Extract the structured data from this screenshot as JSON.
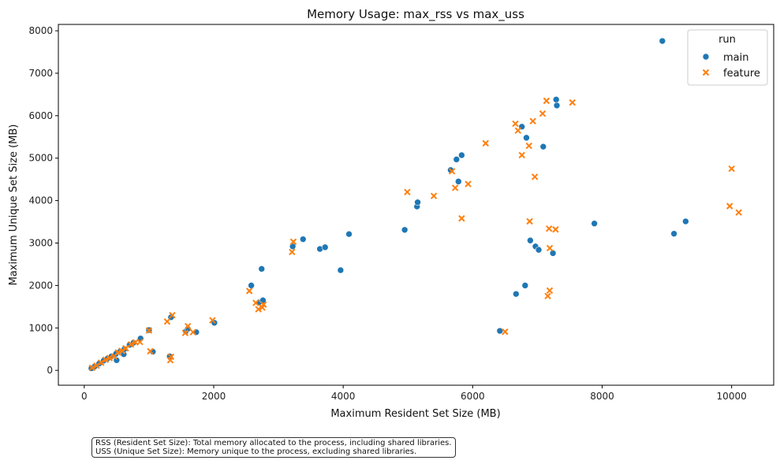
{
  "chart_data": {
    "type": "scatter",
    "title": "Memory Usage: max_rss vs max_uss",
    "xlabel": "Maximum Resident Set Size (MB)",
    "ylabel": "Maximum Unique Set Size (MB)",
    "xlim": [
      -400,
      10650
    ],
    "ylim": [
      -350,
      8150
    ],
    "xticks": [
      0,
      2000,
      4000,
      6000,
      8000,
      10000
    ],
    "yticks": [
      0,
      1000,
      2000,
      3000,
      4000,
      5000,
      6000,
      7000,
      8000
    ],
    "grid": false,
    "legend": {
      "title": "run",
      "placement": "top-right"
    },
    "series": [
      {
        "name": "main",
        "marker": "circle",
        "color": "#1f77b4",
        "points": [
          [
            110,
            50
          ],
          [
            160,
            90
          ],
          [
            230,
            160
          ],
          [
            300,
            230
          ],
          [
            360,
            280
          ],
          [
            420,
            330
          ],
          [
            490,
            390
          ],
          [
            500,
            240
          ],
          [
            550,
            440
          ],
          [
            610,
            380
          ],
          [
            620,
            500
          ],
          [
            700,
            600
          ],
          [
            760,
            650
          ],
          [
            870,
            750
          ],
          [
            1000,
            950
          ],
          [
            1060,
            440
          ],
          [
            1320,
            330
          ],
          [
            1340,
            1250
          ],
          [
            1570,
            920
          ],
          [
            1600,
            980
          ],
          [
            1730,
            900
          ],
          [
            2010,
            1120
          ],
          [
            2580,
            2000
          ],
          [
            2700,
            1600
          ],
          [
            2740,
            2390
          ],
          [
            2760,
            1650
          ],
          [
            3220,
            2920
          ],
          [
            3380,
            3090
          ],
          [
            3640,
            2860
          ],
          [
            3720,
            2900
          ],
          [
            3960,
            2360
          ],
          [
            4090,
            3210
          ],
          [
            4950,
            3310
          ],
          [
            5140,
            3860
          ],
          [
            5150,
            3960
          ],
          [
            5660,
            4720
          ],
          [
            5750,
            4970
          ],
          [
            5780,
            4450
          ],
          [
            5830,
            5070
          ],
          [
            6420,
            930
          ],
          [
            6670,
            1800
          ],
          [
            6760,
            5740
          ],
          [
            6810,
            2000
          ],
          [
            6830,
            5480
          ],
          [
            6890,
            3060
          ],
          [
            6970,
            2920
          ],
          [
            7020,
            2840
          ],
          [
            7090,
            5270
          ],
          [
            7240,
            2760
          ],
          [
            7290,
            6380
          ],
          [
            7300,
            6240
          ],
          [
            7880,
            3460
          ],
          [
            8930,
            7760
          ],
          [
            9110,
            3220
          ],
          [
            9290,
            3510
          ]
        ]
      },
      {
        "name": "feature",
        "marker": "x",
        "color": "#ff7f0e",
        "points": [
          [
            120,
            60
          ],
          [
            190,
            110
          ],
          [
            260,
            180
          ],
          [
            330,
            250
          ],
          [
            390,
            290
          ],
          [
            460,
            330
          ],
          [
            520,
            420
          ],
          [
            580,
            460
          ],
          [
            640,
            520
          ],
          [
            720,
            610
          ],
          [
            790,
            660
          ],
          [
            860,
            670
          ],
          [
            1000,
            940
          ],
          [
            1020,
            450
          ],
          [
            1280,
            1150
          ],
          [
            1330,
            240
          ],
          [
            1340,
            320
          ],
          [
            1360,
            1300
          ],
          [
            1560,
            880
          ],
          [
            1600,
            1040
          ],
          [
            1680,
            900
          ],
          [
            1980,
            1180
          ],
          [
            2550,
            1870
          ],
          [
            2650,
            1590
          ],
          [
            2690,
            1440
          ],
          [
            2750,
            1480
          ],
          [
            2770,
            1550
          ],
          [
            3210,
            2790
          ],
          [
            3230,
            3030
          ],
          [
            4990,
            4200
          ],
          [
            5400,
            4110
          ],
          [
            5680,
            4690
          ],
          [
            5730,
            4300
          ],
          [
            5830,
            3580
          ],
          [
            5930,
            4390
          ],
          [
            6200,
            5350
          ],
          [
            6500,
            910
          ],
          [
            6660,
            5810
          ],
          [
            6700,
            5650
          ],
          [
            6760,
            5070
          ],
          [
            6870,
            5290
          ],
          [
            6880,
            3510
          ],
          [
            6930,
            5870
          ],
          [
            6960,
            4560
          ],
          [
            7080,
            6050
          ],
          [
            7140,
            6350
          ],
          [
            7160,
            1750
          ],
          [
            7180,
            3340
          ],
          [
            7190,
            1880
          ],
          [
            7190,
            2880
          ],
          [
            7280,
            3320
          ],
          [
            7540,
            6310
          ],
          [
            9970,
            3870
          ],
          [
            10000,
            4750
          ],
          [
            10110,
            3720
          ]
        ]
      }
    ]
  },
  "footnote": {
    "line1": "RSS (Resident Set Size): Total memory allocated to the process, including shared libraries.",
    "line2": "USS (Unique Set Size): Memory unique to the process, excluding shared libraries."
  }
}
